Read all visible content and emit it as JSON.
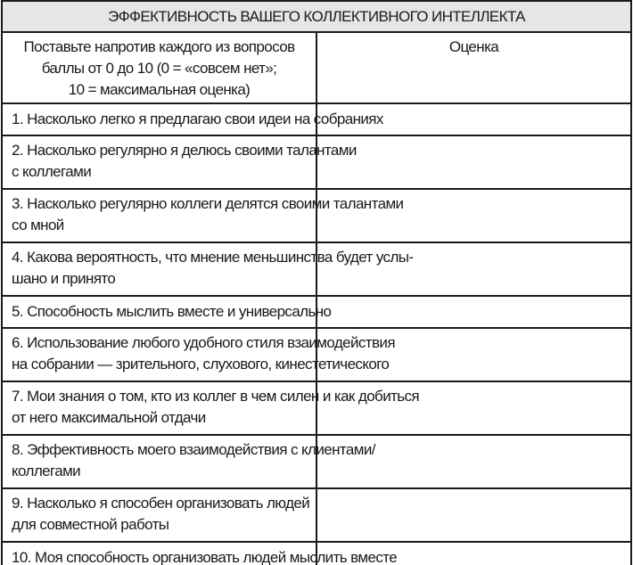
{
  "title": "ЭФФЕКТИВНОСТЬ ВАШЕГО КОЛЛЕКТИВНОГО ИНТЕЛЛЕКТА",
  "header": {
    "instruction": "Поставьте напротив каждого из вопросов\nбаллы от 0 до 10 (0 = «совсем нет»;\n10 = максимальная оценка)",
    "score_label": "Оценка"
  },
  "questions": [
    {
      "text": "1. Насколько легко я предлагаю свои идеи на собраниях",
      "score": ""
    },
    {
      "text": "2. Насколько регулярно я делюсь своими талантами\nс коллегами",
      "score": ""
    },
    {
      "text": "3. Насколько регулярно коллеги делятся своими талантами\nсо мной",
      "score": ""
    },
    {
      "text": "4. Какова вероятность, что мнение меньшинства будет услы-\nшано и принято",
      "score": ""
    },
    {
      "text": "5. Способность мыслить вместе и универсально",
      "score": ""
    },
    {
      "text": "6. Использование любого удобного стиля взаимодействия\nна собрании — зрительного, слухового, кинестетического",
      "score": ""
    },
    {
      "text": "7. Мои знания о том, кто из коллег в чем силен и как добиться\nот него максимальной отдачи",
      "score": ""
    },
    {
      "text": "8. Эффективность моего взаимодействия с клиентами/\nколлегами",
      "score": ""
    },
    {
      "text": "9. Насколько я способен организовать людей\nдля совместной работы",
      "score": ""
    },
    {
      "text": "10. Моя способность организовать людей мыслить вместе",
      "score": ""
    }
  ]
}
